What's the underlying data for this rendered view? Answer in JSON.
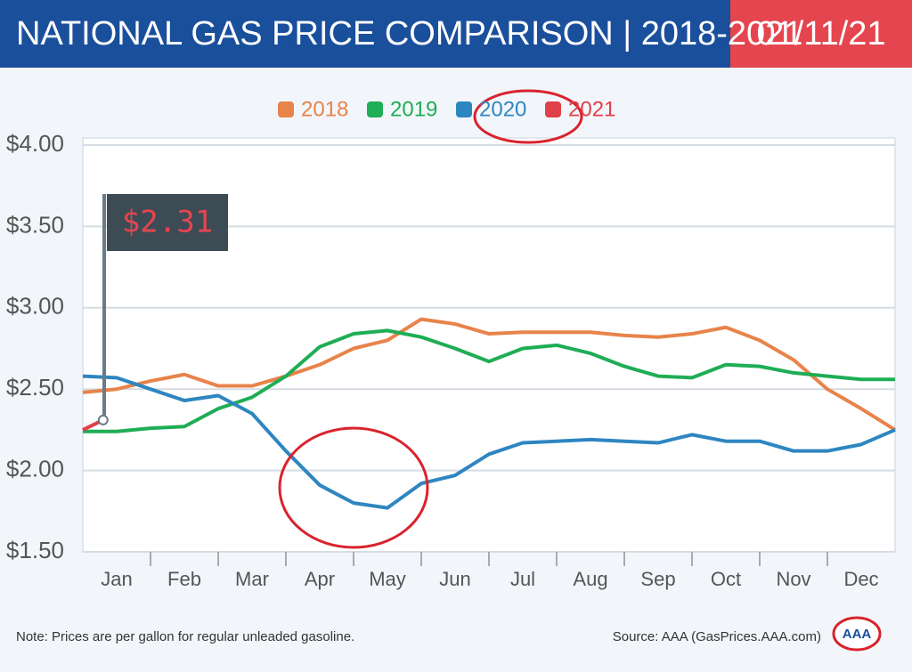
{
  "chart_data": {
    "type": "line",
    "title": "NATIONAL GAS PRICE COMPARISON | 2018-2021",
    "date": "01/11/21",
    "annotation": "$2.31",
    "note": "Note: Prices are per gallon for regular unleaded gasoline.",
    "source": "Source: AAA (GasPrices.AAA.com)",
    "logo": "AAA",
    "x": [
      0,
      0.5,
      1,
      1.5,
      2,
      2.5,
      3,
      3.5,
      4,
      4.5,
      5,
      5.5,
      6,
      6.5,
      7,
      7.5,
      8,
      8.5,
      9,
      9.5,
      10,
      10.5,
      11,
      11.5,
      12
    ],
    "xlim": [
      0,
      12
    ],
    "xticks": [
      {
        "value": 0.5,
        "label": "Jan"
      },
      {
        "value": 1.5,
        "label": "Feb"
      },
      {
        "value": 2.5,
        "label": "Mar"
      },
      {
        "value": 3.5,
        "label": "Apr"
      },
      {
        "value": 4.5,
        "label": "May"
      },
      {
        "value": 5.5,
        "label": "Jun"
      },
      {
        "value": 6.5,
        "label": "Jul"
      },
      {
        "value": 7.5,
        "label": "Aug"
      },
      {
        "value": 8.5,
        "label": "Sep"
      },
      {
        "value": 9.5,
        "label": "Oct"
      },
      {
        "value": 10.5,
        "label": "Nov"
      },
      {
        "value": 11.5,
        "label": "Dec"
      }
    ],
    "ylim": [
      1.5,
      4
    ],
    "yticks": [
      {
        "value": 1.5,
        "label": "$1.50"
      },
      {
        "value": 2,
        "label": "$2.00"
      },
      {
        "value": 2.5,
        "label": "$2.50"
      },
      {
        "value": 3,
        "label": "$3.00"
      },
      {
        "value": 3.5,
        "label": "$3.50"
      },
      {
        "value": 4,
        "label": "$4.00"
      }
    ],
    "grid": true,
    "legend": "top",
    "series": [
      {
        "name": "2018",
        "color": "#e8834a",
        "values": [
          2.48,
          2.5,
          2.55,
          2.59,
          2.52,
          2.52,
          2.58,
          2.65,
          2.75,
          2.8,
          2.93,
          2.9,
          2.84,
          2.85,
          2.85,
          2.85,
          2.83,
          2.82,
          2.84,
          2.88,
          2.8,
          2.68,
          2.5,
          2.38,
          2.25
        ]
      },
      {
        "name": "2019",
        "color": "#1fad55",
        "values": [
          2.24,
          2.24,
          2.26,
          2.27,
          2.38,
          2.45,
          2.58,
          2.76,
          2.84,
          2.86,
          2.82,
          2.75,
          2.67,
          2.75,
          2.77,
          2.72,
          2.64,
          2.58,
          2.57,
          2.65,
          2.64,
          2.6,
          2.58,
          2.56,
          2.56
        ]
      },
      {
        "name": "2020",
        "color": "#2e86c1",
        "values": [
          2.58,
          2.57,
          2.5,
          2.43,
          2.46,
          2.35,
          2.12,
          1.91,
          1.8,
          1.77,
          1.92,
          1.97,
          2.1,
          2.17,
          2.18,
          2.19,
          2.18,
          2.17,
          2.22,
          2.18,
          2.18,
          2.12,
          2.12,
          2.16,
          2.25
        ]
      },
      {
        "name": "2021",
        "color": "#e0404a",
        "x": [
          0,
          0.3
        ],
        "values": [
          2.25,
          2.31
        ]
      }
    ]
  }
}
